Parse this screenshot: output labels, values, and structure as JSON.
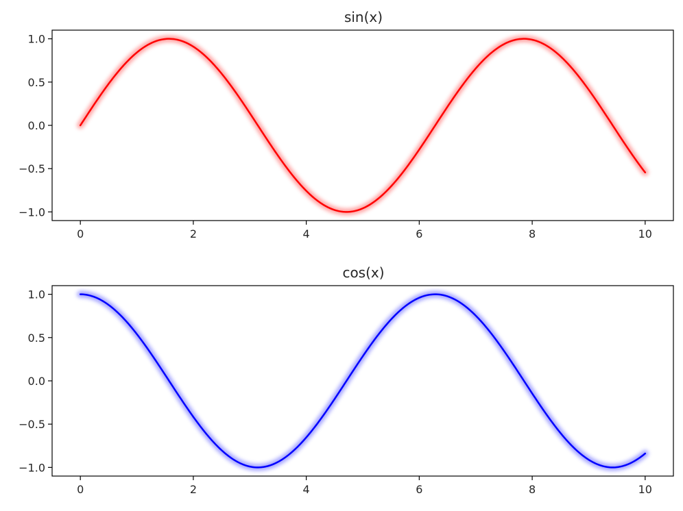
{
  "chart_data": [
    {
      "type": "line",
      "title": "sin(x)",
      "xlabel": "",
      "ylabel": "",
      "xlim": [
        -0.5,
        10.5
      ],
      "ylim": [
        -1.1,
        1.1
      ],
      "xticks": [
        "0",
        "2",
        "4",
        "6",
        "8",
        "10"
      ],
      "yticks": [
        "1.0",
        "0.5",
        "0.0",
        "−0.5",
        "−1.0"
      ],
      "grid": false,
      "color": "#ff0000",
      "glow": true,
      "series": [
        {
          "function": "sin",
          "x": [
            0,
            0.5,
            1,
            1.5,
            2,
            2.5,
            3,
            3.5,
            4,
            4.5,
            5,
            5.5,
            6,
            6.5,
            7,
            7.5,
            8,
            8.5,
            9,
            9.5,
            10
          ],
          "y": [
            0,
            0.479,
            0.841,
            0.997,
            0.909,
            0.598,
            0.141,
            -0.351,
            -0.757,
            -0.978,
            -0.959,
            -0.706,
            -0.279,
            0.215,
            0.657,
            0.938,
            0.989,
            0.798,
            0.412,
            -0.075,
            -0.544
          ]
        }
      ]
    },
    {
      "type": "line",
      "title": "cos(x)",
      "xlabel": "",
      "ylabel": "",
      "xlim": [
        -0.5,
        10.5
      ],
      "ylim": [
        -1.1,
        1.1
      ],
      "xticks": [
        "0",
        "2",
        "4",
        "6",
        "8",
        "10"
      ],
      "yticks": [
        "1.0",
        "0.5",
        "0.0",
        "−0.5",
        "−1.0"
      ],
      "grid": false,
      "color": "#0000ff",
      "glow": true,
      "series": [
        {
          "function": "cos",
          "x": [
            0,
            0.5,
            1,
            1.5,
            2,
            2.5,
            3,
            3.5,
            4,
            4.5,
            5,
            5.5,
            6,
            6.5,
            7,
            7.5,
            8,
            8.5,
            9,
            9.5,
            10
          ],
          "y": [
            1,
            0.878,
            0.54,
            0.071,
            -0.416,
            -0.801,
            -0.99,
            -0.936,
            -0.654,
            -0.211,
            0.284,
            0.709,
            0.96,
            0.977,
            0.754,
            0.347,
            -0.146,
            -0.602,
            -0.911,
            -0.997,
            -0.839
          ]
        }
      ]
    }
  ]
}
